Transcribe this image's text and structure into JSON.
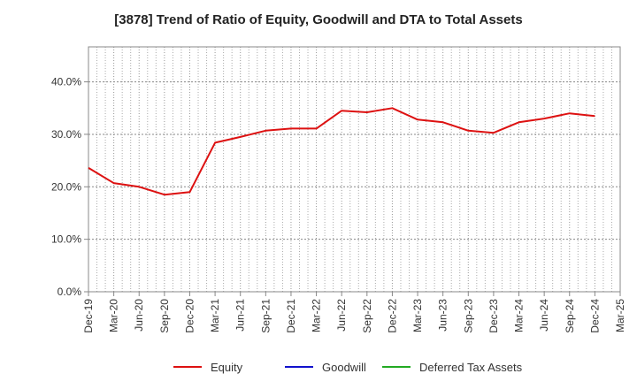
{
  "chart_data": {
    "type": "line",
    "title": "[3878]  Trend of Ratio of Equity, Goodwill and DTA to Total Assets",
    "xlabel": "",
    "ylabel": "",
    "ylim": [
      0,
      0.4667
    ],
    "y_ticks": [
      0,
      0.1,
      0.2,
      0.3,
      0.4
    ],
    "y_tick_labels": [
      "0.0%",
      "10.0%",
      "20.0%",
      "30.0%",
      "40.0%"
    ],
    "x_tick_labels": [
      "Dec-19",
      "Mar-20",
      "Jun-20",
      "Sep-20",
      "Dec-20",
      "Mar-21",
      "Jun-21",
      "Sep-21",
      "Dec-21",
      "Mar-22",
      "Jun-22",
      "Sep-22",
      "Dec-22",
      "Mar-23",
      "Jun-23",
      "Sep-23",
      "Dec-23",
      "Mar-24",
      "Jun-24",
      "Sep-24",
      "Dec-24",
      "Mar-25"
    ],
    "grid": true,
    "legend_position": "bottom",
    "series": [
      {
        "name": "Equity",
        "color": "#dd1111",
        "x": [
          "Dec-19",
          "Mar-20",
          "Jun-20",
          "Sep-20",
          "Dec-20",
          "Mar-21",
          "Jun-21",
          "Sep-21",
          "Dec-21",
          "Mar-22",
          "Jun-22",
          "Sep-22",
          "Dec-22",
          "Mar-23",
          "Jun-23",
          "Sep-23",
          "Dec-23",
          "Mar-24",
          "Jun-24",
          "Sep-24",
          "Dec-24"
        ],
        "values": [
          0.236,
          0.207,
          0.2,
          0.185,
          0.19,
          0.284,
          0.295,
          0.307,
          0.311,
          0.311,
          0.345,
          0.342,
          0.35,
          0.328,
          0.323,
          0.307,
          0.303,
          0.323,
          0.33,
          0.34,
          0.335
        ]
      },
      {
        "name": "Goodwill",
        "color": "#1111cc",
        "x": [],
        "values": []
      },
      {
        "name": "Deferred Tax Assets",
        "color": "#22aa22",
        "x": [],
        "values": []
      }
    ]
  }
}
